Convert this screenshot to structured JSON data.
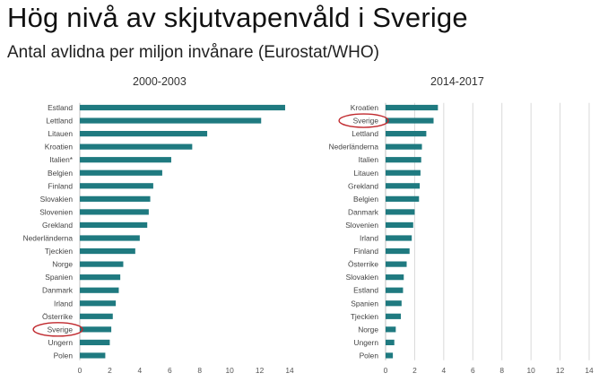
{
  "title": "Hög nivå av skjutvapenvåld i Sverige",
  "subtitle": "Antal avlidna per miljon invånare (Eurostat/WHO)",
  "colors": {
    "bar": "#1f7a80",
    "highlight": "#c0282d",
    "grid": "#d9d9d9"
  },
  "chart_data": [
    {
      "type": "bar",
      "orientation": "horizontal",
      "title": "2000-2003",
      "categories": [
        "Estland",
        "Lettland",
        "Litauen",
        "Kroatien",
        "Italien*",
        "Belgien",
        "Finland",
        "Slovakien",
        "Slovenien",
        "Grekland",
        "Nederländerna",
        "Tjeckien",
        "Norge",
        "Spanien",
        "Danmark",
        "Irland",
        "Österrike",
        "Sverige",
        "Ungern",
        "Polen"
      ],
      "values": [
        13.7,
        12.1,
        8.5,
        7.5,
        6.1,
        5.5,
        4.9,
        4.7,
        4.6,
        4.5,
        4.0,
        3.7,
        2.9,
        2.7,
        2.6,
        2.4,
        2.2,
        2.1,
        2.0,
        1.7
      ],
      "xlim": [
        0,
        14
      ],
      "xticks": [
        0,
        2,
        4,
        6,
        8,
        10,
        12,
        14
      ],
      "grid": false,
      "highlight": "Sverige"
    },
    {
      "type": "bar",
      "orientation": "horizontal",
      "title": "2014-2017",
      "categories": [
        "Kroatien",
        "Sverige",
        "Lettland",
        "Nederländerna",
        "Italien",
        "Litauen",
        "Grekland",
        "Belgien",
        "Danmark",
        "Slovenien",
        "Irland",
        "Finland",
        "Österrike",
        "Slovakien",
        "Estland",
        "Spanien",
        "Tjeckien",
        "Norge",
        "Ungern",
        "Polen"
      ],
      "values": [
        3.6,
        3.3,
        2.8,
        2.5,
        2.45,
        2.4,
        2.35,
        2.3,
        2.0,
        1.9,
        1.8,
        1.65,
        1.45,
        1.25,
        1.2,
        1.1,
        1.05,
        0.7,
        0.6,
        0.5
      ],
      "xlim": [
        0,
        14
      ],
      "xticks": [
        0,
        2,
        4,
        6,
        8,
        10,
        12,
        14
      ],
      "grid": true,
      "highlight": "Sverige"
    }
  ]
}
